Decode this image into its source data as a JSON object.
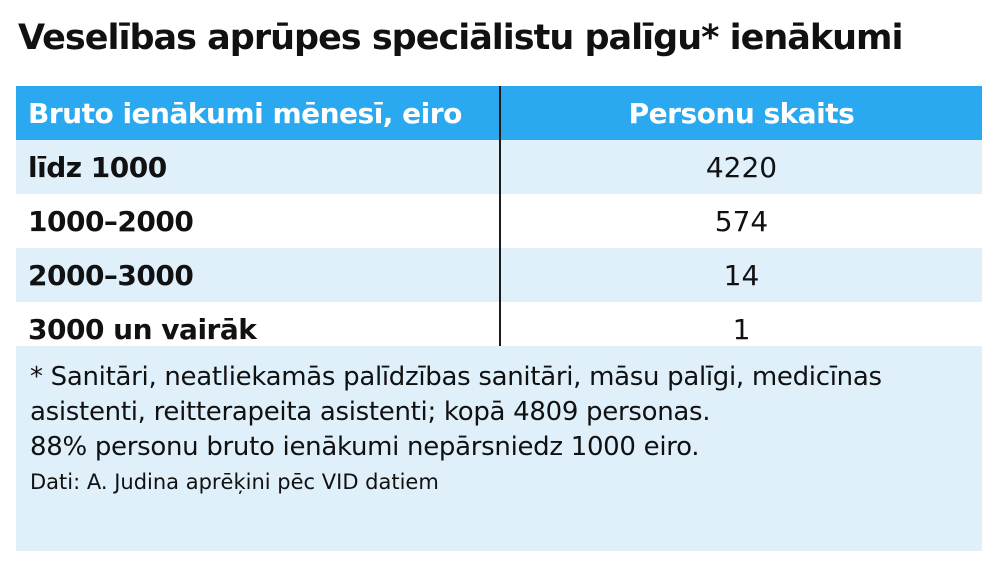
{
  "title": "Veselības aprūpes speciālistu palīgu* ienākumi",
  "chart_data": {
    "type": "table",
    "title": "Veselības aprūpes speciālistu palīgu* ienākumi",
    "columns": [
      "Bruto ienākumi mēnesī, eiro",
      "Personu skaits"
    ],
    "categories": [
      "līdz 1000",
      "1000–2000",
      "2000–3000",
      "3000 un vairāk"
    ],
    "values": [
      4220,
      574,
      14,
      1
    ]
  },
  "notes": {
    "footnote": "* Sanitāri, neatliekamās palīdzības sanitāri, māsu palīgi, medicīnas asistenti, reitterapeita asistenti; kopā 4809 personas.",
    "summary": "88% personu bruto ienākumi nepārsniedz 1000 eiro.",
    "source": "Dati: A. Judina aprēķini pēc VID datiem"
  },
  "colors": {
    "header_bg": "#2aa9f0",
    "row_tint": "#dff0fb"
  }
}
